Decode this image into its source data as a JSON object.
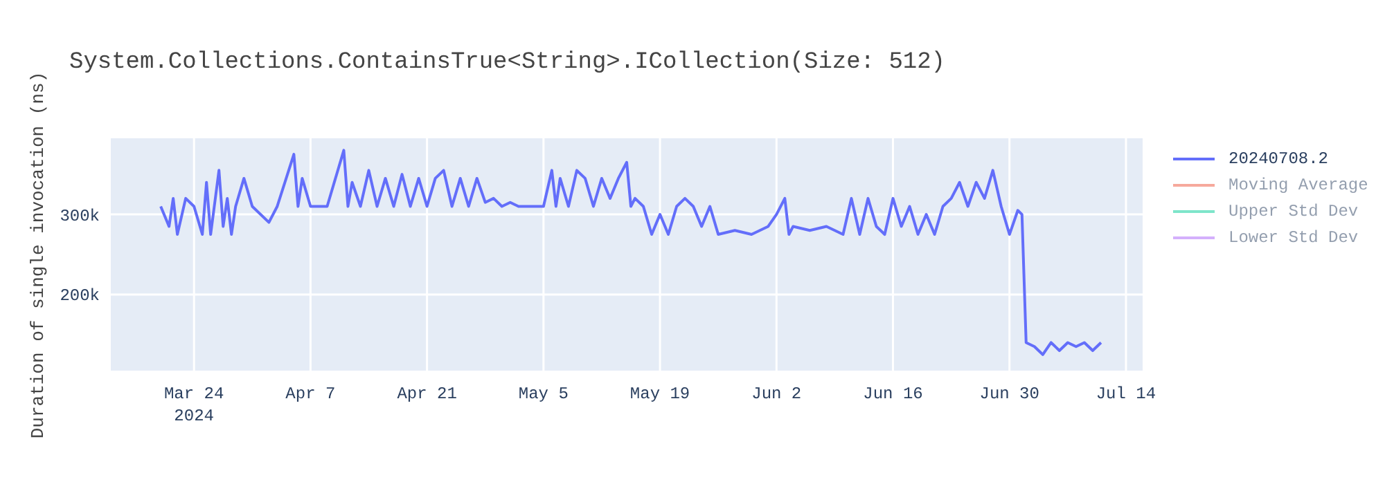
{
  "chart_data": {
    "type": "line",
    "title": "System.Collections.ContainsTrue<String>.ICollection(Size: 512)",
    "ylabel": "Duration of single invocation (ns)",
    "x": [
      "2024-03-20",
      "2024-03-21",
      "2024-03-21T12:00",
      "2024-03-22",
      "2024-03-23",
      "2024-03-24",
      "2024-03-25",
      "2024-03-25T12:00",
      "2024-03-26",
      "2024-03-27",
      "2024-03-27T12:00",
      "2024-03-28",
      "2024-03-28T12:00",
      "2024-03-29",
      "2024-03-30",
      "2024-03-31",
      "2024-04-02",
      "2024-04-03",
      "2024-04-05",
      "2024-04-05T12:00",
      "2024-04-06",
      "2024-04-07",
      "2024-04-09",
      "2024-04-10",
      "2024-04-11",
      "2024-04-11T12:00",
      "2024-04-12",
      "2024-04-13",
      "2024-04-14",
      "2024-04-15",
      "2024-04-16",
      "2024-04-17",
      "2024-04-18",
      "2024-04-19",
      "2024-04-20",
      "2024-04-21",
      "2024-04-22",
      "2024-04-23",
      "2024-04-24",
      "2024-04-25",
      "2024-04-26",
      "2024-04-27",
      "2024-04-28",
      "2024-04-29",
      "2024-04-30",
      "2024-05-01",
      "2024-05-02",
      "2024-05-05",
      "2024-05-06",
      "2024-05-06T12:00",
      "2024-05-07",
      "2024-05-08",
      "2024-05-09",
      "2024-05-10",
      "2024-05-11",
      "2024-05-12",
      "2024-05-13",
      "2024-05-14",
      "2024-05-15",
      "2024-05-15T12:00",
      "2024-05-16",
      "2024-05-17",
      "2024-05-18",
      "2024-05-19",
      "2024-05-20",
      "2024-05-21",
      "2024-05-22",
      "2024-05-23",
      "2024-05-24",
      "2024-05-25",
      "2024-05-26",
      "2024-05-28",
      "2024-05-30",
      "2024-06-01",
      "2024-06-02",
      "2024-06-03",
      "2024-06-03T12:00",
      "2024-06-04",
      "2024-06-06",
      "2024-06-08",
      "2024-06-10",
      "2024-06-11",
      "2024-06-12",
      "2024-06-13",
      "2024-06-14",
      "2024-06-15",
      "2024-06-16",
      "2024-06-17",
      "2024-06-18",
      "2024-06-19",
      "2024-06-20",
      "2024-06-21",
      "2024-06-22",
      "2024-06-23",
      "2024-06-24",
      "2024-06-25",
      "2024-06-26",
      "2024-06-27",
      "2024-06-28",
      "2024-06-29",
      "2024-06-30",
      "2024-07-01",
      "2024-07-01T12:00",
      "2024-07-02",
      "2024-07-03",
      "2024-07-04",
      "2024-07-05",
      "2024-07-06",
      "2024-07-07",
      "2024-07-08",
      "2024-07-09",
      "2024-07-10",
      "2024-07-11"
    ],
    "series": [
      {
        "name": "20240708.2",
        "color": "#636efa",
        "values": [
          310000,
          285000,
          320000,
          275000,
          320000,
          310000,
          275000,
          340000,
          275000,
          355000,
          285000,
          320000,
          275000,
          310000,
          345000,
          310000,
          290000,
          310000,
          375000,
          310000,
          345000,
          310000,
          310000,
          345000,
          380000,
          310000,
          340000,
          310000,
          355000,
          310000,
          345000,
          310000,
          350000,
          310000,
          345000,
          310000,
          345000,
          355000,
          310000,
          345000,
          310000,
          345000,
          315000,
          320000,
          310000,
          315000,
          310000,
          310000,
          355000,
          310000,
          345000,
          310000,
          355000,
          345000,
          310000,
          345000,
          320000,
          345000,
          365000,
          310000,
          320000,
          310000,
          275000,
          300000,
          275000,
          310000,
          320000,
          310000,
          285000,
          310000,
          275000,
          280000,
          275000,
          285000,
          300000,
          320000,
          275000,
          285000,
          280000,
          285000,
          275000,
          320000,
          275000,
          320000,
          285000,
          275000,
          320000,
          285000,
          310000,
          275000,
          300000,
          275000,
          310000,
          320000,
          340000,
          310000,
          340000,
          320000,
          355000,
          310000,
          275000,
          305000,
          300000,
          140000,
          135000,
          125000,
          140000,
          130000,
          140000,
          135000,
          140000,
          130000,
          140000
        ]
      },
      {
        "name": "Moving Average",
        "color": "#ef553b",
        "values": [
          null,
          null,
          null,
          null,
          null,
          null,
          null,
          null,
          null,
          null,
          null,
          null,
          null,
          null,
          null,
          null,
          null,
          null,
          null,
          null,
          null,
          null,
          null,
          null,
          null,
          null,
          null,
          null,
          null,
          null,
          null,
          null,
          null,
          null,
          null,
          null,
          null,
          null,
          null,
          null,
          null,
          null,
          null,
          null,
          null,
          null,
          null,
          null,
          null,
          null,
          null,
          null,
          null,
          null,
          null,
          null,
          null,
          null,
          null,
          null,
          null,
          null,
          null,
          null,
          null,
          null,
          null,
          null,
          null,
          null,
          null,
          null,
          null,
          null,
          null,
          null,
          null,
          null,
          null,
          null,
          null,
          null,
          null,
          null,
          null,
          null,
          null,
          null,
          null,
          null,
          null,
          null,
          null,
          null,
          null,
          null,
          null,
          null,
          null,
          null,
          null,
          null,
          null,
          null,
          null,
          null,
          null,
          null,
          null,
          null,
          null,
          null,
          null
        ]
      },
      {
        "name": "Upper Std Dev",
        "color": "#00cc96",
        "values": [
          null,
          null,
          null,
          null,
          null,
          null,
          null,
          null,
          null,
          null,
          null,
          null,
          null,
          null,
          null,
          null,
          null,
          null,
          null,
          null,
          null,
          null,
          null,
          null,
          null,
          null,
          null,
          null,
          null,
          null,
          null,
          null,
          null,
          null,
          null,
          null,
          null,
          null,
          null,
          null,
          null,
          null,
          null,
          null,
          null,
          null,
          null,
          null,
          null,
          null,
          null,
          null,
          null,
          null,
          null,
          null,
          null,
          null,
          null,
          null,
          null,
          null,
          null,
          null,
          null,
          null,
          null,
          null,
          null,
          null,
          null,
          null,
          null,
          null,
          null,
          null,
          null,
          null,
          null,
          null,
          null,
          null,
          null,
          null,
          null,
          null,
          null,
          null,
          null,
          null,
          null,
          null,
          null,
          null,
          null,
          null,
          null,
          null,
          null,
          null,
          null,
          null,
          null,
          null,
          null,
          null,
          null,
          null,
          null,
          null,
          null,
          null,
          null
        ]
      },
      {
        "name": "Lower Std Dev",
        "color": "#ab63fa",
        "values": [
          null,
          null,
          null,
          null,
          null,
          null,
          null,
          null,
          null,
          null,
          null,
          null,
          null,
          null,
          null,
          null,
          null,
          null,
          null,
          null,
          null,
          null,
          null,
          null,
          null,
          null,
          null,
          null,
          null,
          null,
          null,
          null,
          null,
          null,
          null,
          null,
          null,
          null,
          null,
          null,
          null,
          null,
          null,
          null,
          null,
          null,
          null,
          null,
          null,
          null,
          null,
          null,
          null,
          null,
          null,
          null,
          null,
          null,
          null,
          null,
          null,
          null,
          null,
          null,
          null,
          null,
          null,
          null,
          null,
          null,
          null,
          null,
          null,
          null,
          null,
          null,
          null,
          null,
          null,
          null,
          null,
          null,
          null,
          null,
          null,
          null,
          null,
          null,
          null,
          null,
          null,
          null,
          null,
          null,
          null,
          null,
          null,
          null,
          null,
          null,
          null,
          null,
          null,
          null,
          null,
          null,
          null,
          null,
          null,
          null,
          null,
          null,
          null
        ]
      }
    ],
    "xlim": [
      "2024-03-14",
      "2024-07-16"
    ],
    "xticks": [
      {
        "value": "2024-03-24",
        "label": "Mar 24\n2024"
      },
      {
        "value": "2024-04-07",
        "label": "Apr 7"
      },
      {
        "value": "2024-04-21",
        "label": "Apr 21"
      },
      {
        "value": "2024-05-05",
        "label": "May 5"
      },
      {
        "value": "2024-05-19",
        "label": "May 19"
      },
      {
        "value": "2024-06-02",
        "label": "Jun 2"
      },
      {
        "value": "2024-06-16",
        "label": "Jun 16"
      },
      {
        "value": "2024-06-30",
        "label": "Jun 30"
      },
      {
        "value": "2024-07-14",
        "label": "Jul 14"
      }
    ],
    "ylim": [
      105000,
      395000
    ],
    "yticks": [
      {
        "value": 200000,
        "label": "200k"
      },
      {
        "value": 300000,
        "label": "300k"
      }
    ],
    "grid": true,
    "legend": "top right",
    "marker": "none",
    "line_style": "solid"
  }
}
